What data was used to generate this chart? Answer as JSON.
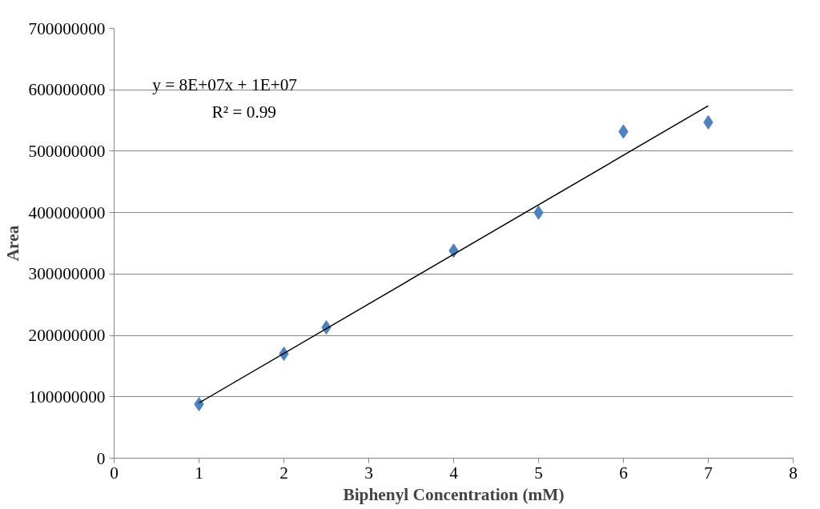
{
  "chart_data": {
    "type": "scatter",
    "xlabel": "Biphenyl Concentration (mM)",
    "ylabel": "Area",
    "xlim": [
      0,
      8
    ],
    "xticks": [
      0,
      1,
      2,
      3,
      4,
      5,
      6,
      7,
      8
    ],
    "ylim": [
      0,
      700000000
    ],
    "yticks": [
      0,
      100000000,
      200000000,
      300000000,
      400000000,
      500000000,
      600000000,
      700000000
    ],
    "grid": "y",
    "marker": "diamond",
    "series": [
      {
        "color": "#4f81bd",
        "x": [
          1,
          2,
          2.5,
          4,
          5,
          6,
          7
        ],
        "values": [
          88000000,
          170000000,
          213000000,
          338000000,
          400000000,
          532000000,
          547000000
        ]
      },
      {
        "type": "line",
        "color": "#000000",
        "x": [
          1,
          7
        ],
        "values": [
          90000000,
          574000000
        ],
        "marker": "none"
      }
    ],
    "annotations": [
      "y = 8E+07x + 1E+07",
      "R² = 0.99"
    ]
  }
}
